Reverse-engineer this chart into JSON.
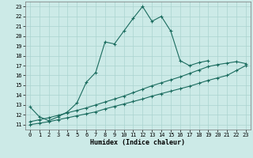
{
  "title": "",
  "xlabel": "Humidex (Indice chaleur)",
  "background_color": "#cceae7",
  "grid_color": "#aad4d0",
  "line_color": "#1a6b5e",
  "xlim": [
    -0.5,
    23.5
  ],
  "ylim": [
    10.5,
    23.5
  ],
  "xticks": [
    0,
    1,
    2,
    3,
    4,
    5,
    6,
    7,
    8,
    9,
    10,
    11,
    12,
    13,
    14,
    15,
    16,
    17,
    18,
    19,
    20,
    21,
    22,
    23
  ],
  "yticks": [
    11,
    12,
    13,
    14,
    15,
    16,
    17,
    18,
    19,
    20,
    21,
    22,
    23
  ],
  "line1_x": [
    0,
    1,
    2,
    3,
    4,
    5,
    6,
    7,
    8,
    9,
    10,
    11,
    12,
    13,
    14,
    15,
    16,
    17,
    18,
    19
  ],
  "line1_y": [
    12.8,
    11.8,
    11.4,
    11.8,
    12.3,
    13.2,
    15.3,
    16.3,
    19.4,
    19.2,
    20.5,
    21.8,
    23.0,
    21.5,
    22.0,
    20.5,
    17.5,
    17.0,
    17.3,
    17.5
  ],
  "line2_x": [
    0,
    1,
    2,
    3,
    4,
    5,
    6,
    7,
    8,
    9,
    10,
    11,
    12,
    13,
    14,
    15,
    16,
    17,
    18,
    19,
    20,
    21,
    22,
    23
  ],
  "line2_y": [
    11.0,
    11.15,
    11.3,
    11.5,
    11.7,
    11.9,
    12.1,
    12.3,
    12.6,
    12.85,
    13.1,
    13.35,
    13.6,
    13.9,
    14.15,
    14.4,
    14.65,
    14.9,
    15.2,
    15.5,
    15.75,
    16.0,
    16.5,
    17.0
  ],
  "line3_x": [
    0,
    1,
    2,
    3,
    4,
    5,
    6,
    7,
    8,
    9,
    10,
    11,
    12,
    13,
    14,
    15,
    16,
    17,
    18,
    19,
    20,
    21,
    22,
    23
  ],
  "line3_y": [
    11.3,
    11.5,
    11.7,
    11.95,
    12.2,
    12.45,
    12.7,
    13.0,
    13.3,
    13.6,
    13.9,
    14.25,
    14.6,
    14.95,
    15.25,
    15.55,
    15.85,
    16.2,
    16.55,
    16.9,
    17.1,
    17.25,
    17.4,
    17.2
  ]
}
